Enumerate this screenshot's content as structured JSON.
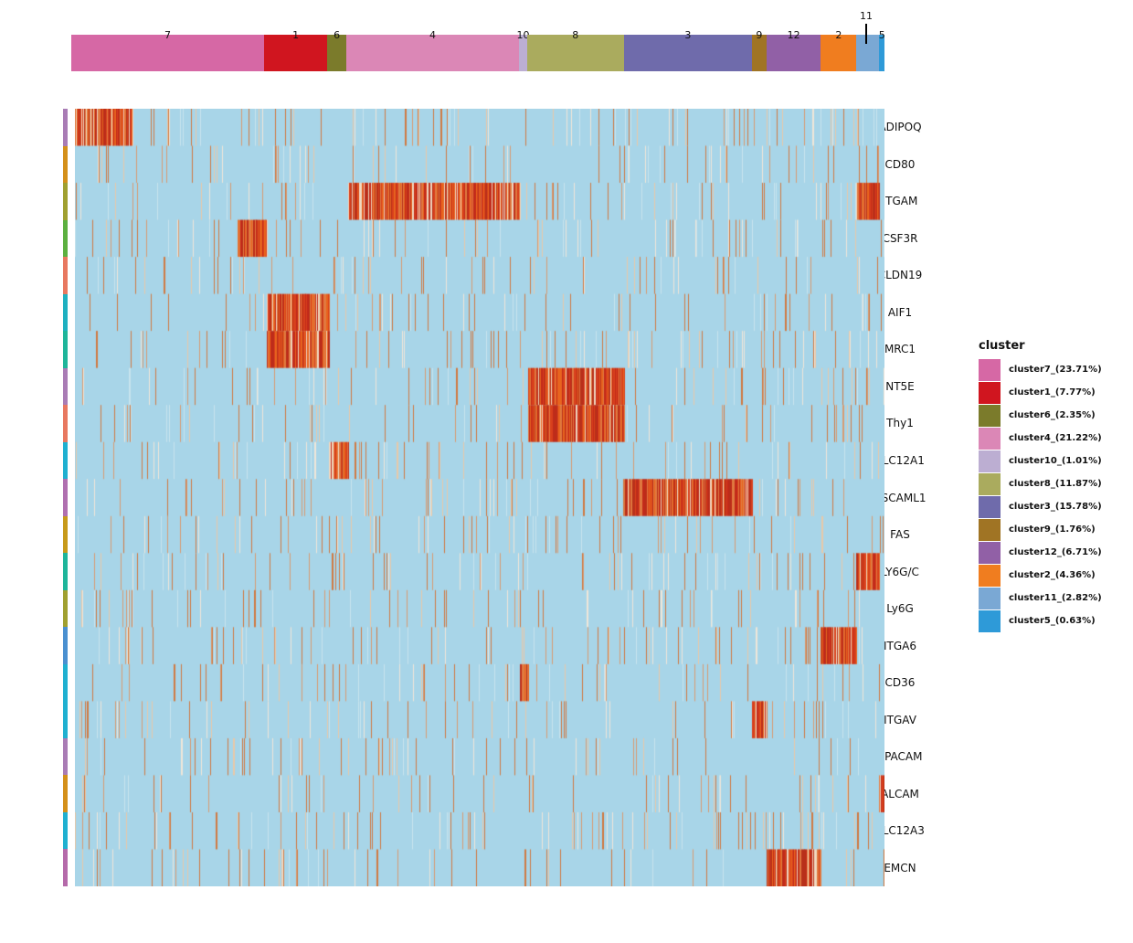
{
  "chart_data": {
    "type": "heatmap",
    "title": "",
    "colors": {
      "low": "#a8d5e8",
      "mid": "#e8c8a8",
      "high": "#c22a1a",
      "high2": "#e8641e"
    },
    "clusters": [
      {
        "id": "7",
        "legend": "cluster7_(23.71%)",
        "pct": 23.71,
        "color": "#d668a5"
      },
      {
        "id": "1",
        "legend": "cluster1_(7.77%)",
        "pct": 7.77,
        "color": "#d0151f"
      },
      {
        "id": "6",
        "legend": "cluster6_(2.35%)",
        "pct": 2.35,
        "color": "#7b7b2b"
      },
      {
        "id": "4",
        "legend": "cluster4_(21.22%)",
        "pct": 21.22,
        "color": "#db87b6"
      },
      {
        "id": "10",
        "legend": "cluster10_(1.01%)",
        "pct": 1.01,
        "color": "#bcaed2"
      },
      {
        "id": "8",
        "legend": "cluster8_(11.87%)",
        "pct": 11.87,
        "color": "#aaab5e"
      },
      {
        "id": "3",
        "legend": "cluster3_(15.78%)",
        "pct": 15.78,
        "color": "#6f6bab"
      },
      {
        "id": "9",
        "legend": "cluster9_(1.76%)",
        "pct": 1.76,
        "color": "#a07424"
      },
      {
        "id": "12",
        "legend": "cluster12_(6.71%)",
        "pct": 6.71,
        "color": "#9160a6"
      },
      {
        "id": "2",
        "legend": "cluster2_(4.36%)",
        "pct": 4.36,
        "color": "#f07d1f"
      },
      {
        "id": "11",
        "legend": "cluster11_(2.82%)",
        "pct": 2.82,
        "color": "#7aa8d4"
      },
      {
        "id": "5",
        "legend": "cluster5_(0.63%)",
        "pct": 0.63,
        "color": "#2e9ad8"
      }
    ],
    "legend_title": "cluster",
    "genes": [
      {
        "name": "ADIPOQ",
        "row_color": "#a97cb5",
        "high_in": [
          "7"
        ],
        "partial": [
          0,
          0.3
        ]
      },
      {
        "name": "CD80",
        "row_color": "#d4901a",
        "high_in": []
      },
      {
        "name": "ITGAM",
        "row_color": "#a0a030",
        "high_in": [
          "4",
          "11"
        ]
      },
      {
        "name": "CSF3R",
        "row_color": "#5cb040",
        "high_in": [
          "7"
        ],
        "partial": [
          0.85,
          1
        ]
      },
      {
        "name": "CLDN19",
        "row_color": "#e87860",
        "high_in": []
      },
      {
        "name": "AIF1",
        "row_color": "#1eb0c0",
        "high_in": [
          "1"
        ]
      },
      {
        "name": "MRC1",
        "row_color": "#1eb59a",
        "high_in": [
          "1"
        ]
      },
      {
        "name": "NT5E",
        "row_color": "#a97cb5",
        "high_in": [
          "8"
        ]
      },
      {
        "name": "Thy1",
        "row_color": "#e87860",
        "high_in": [
          "8"
        ]
      },
      {
        "name": "SLC12A1",
        "row_color": "#1fb0d0",
        "high_in": [
          "6"
        ]
      },
      {
        "name": "ASCAML1",
        "row_color": "#b070b0",
        "high_in": [
          "3"
        ]
      },
      {
        "name": "FAS",
        "row_color": "#c79a1a",
        "high_in": []
      },
      {
        "name": "LY6G/C",
        "row_color": "#1eb59a",
        "high_in": [
          "11"
        ]
      },
      {
        "name": "Ly6G",
        "row_color": "#a0a030",
        "high_in": []
      },
      {
        "name": "ITGA6",
        "row_color": "#4a90d0",
        "high_in": [
          "2"
        ]
      },
      {
        "name": "CD36",
        "row_color": "#1fb0d0",
        "high_in": [
          "10"
        ]
      },
      {
        "name": "ITGAV",
        "row_color": "#1fb0d0",
        "high_in": [
          "9"
        ]
      },
      {
        "name": "EPACAM",
        "row_color": "#a97cb5",
        "high_in": []
      },
      {
        "name": "ALCAM",
        "row_color": "#d4901a",
        "high_in": [
          "5"
        ]
      },
      {
        "name": "SLC12A3",
        "row_color": "#1fb0d0",
        "high_in": []
      },
      {
        "name": "EMCN",
        "row_color": "#b56aaa",
        "high_in": [
          "12"
        ]
      }
    ]
  }
}
